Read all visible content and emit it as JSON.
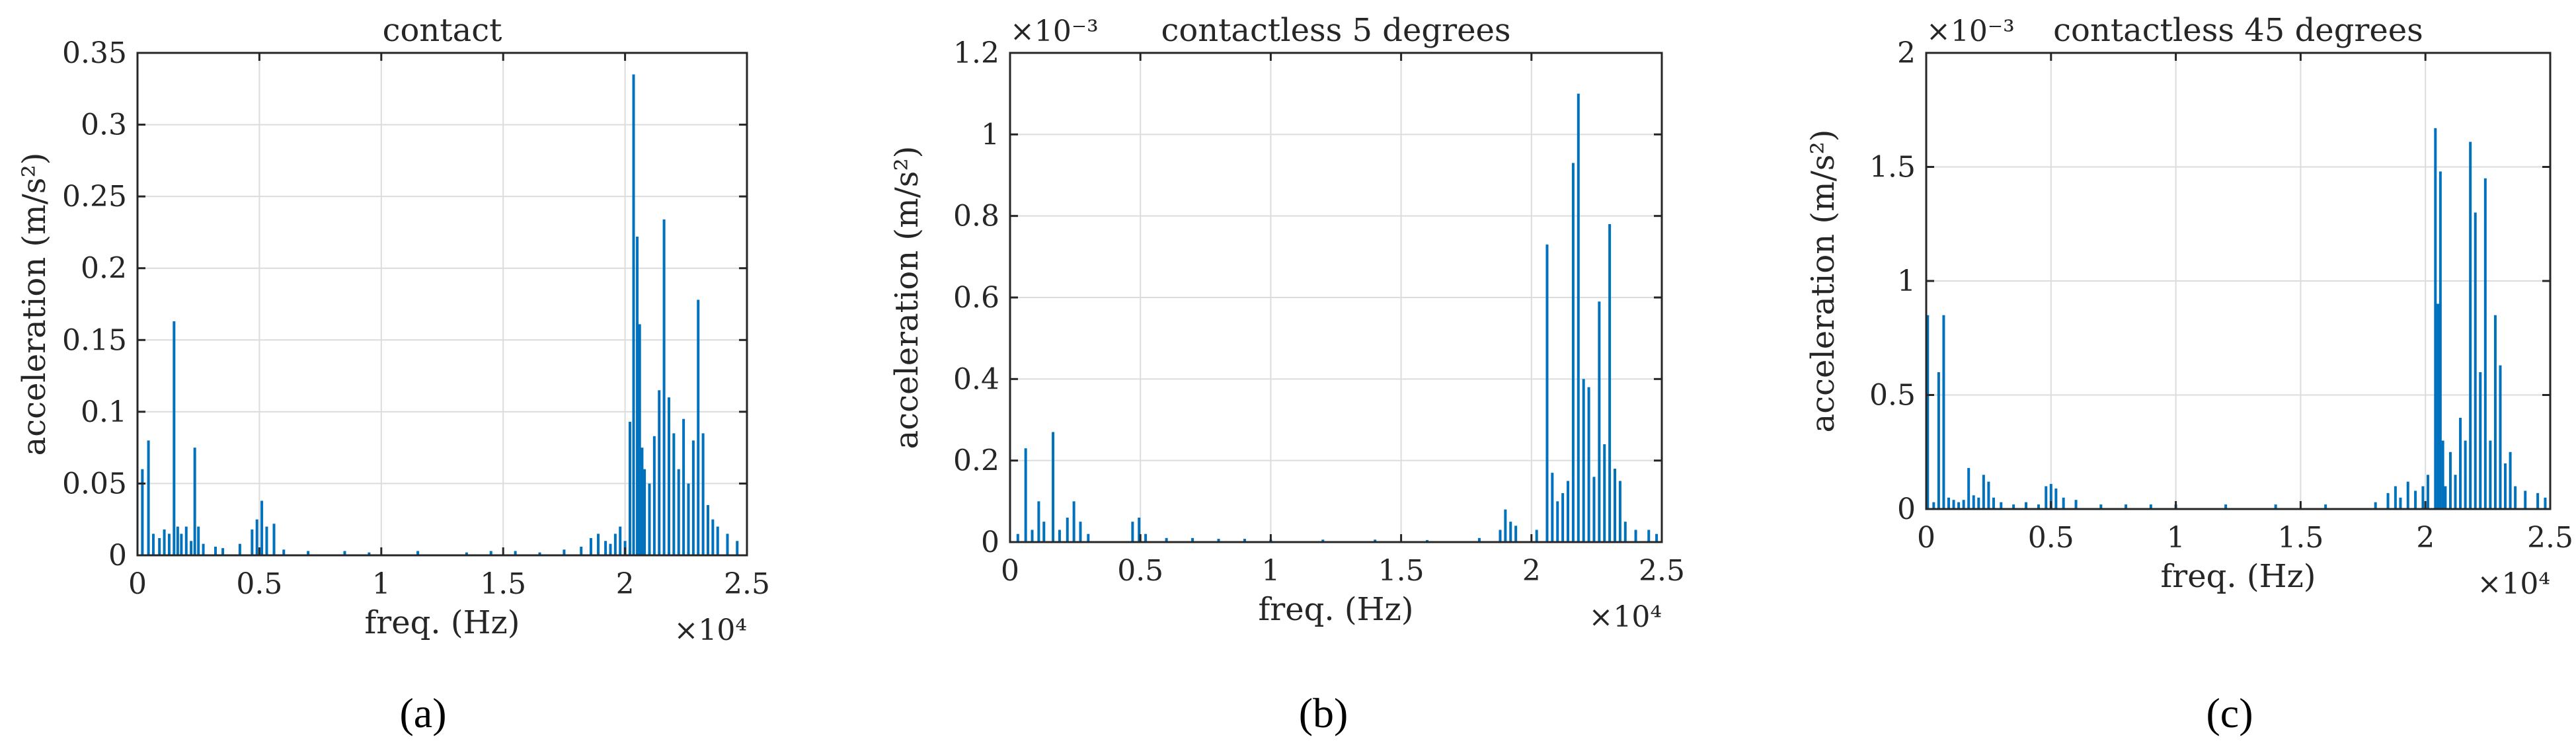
{
  "chart_data": [
    {
      "type": "bar",
      "panel_label": "(a)",
      "title": "contact",
      "xlabel": "freq. (Hz)",
      "ylabel": "acceleration (m/s²)",
      "x_multiplier": "×10⁴",
      "y_multiplier": "",
      "xlim": [
        0,
        25000
      ],
      "ylim": [
        0,
        0.35
      ],
      "xticks": [
        0,
        5000,
        10000,
        15000,
        20000,
        25000
      ],
      "xtick_labels": [
        "0",
        "0.5",
        "1",
        "1.5",
        "2",
        "2.5"
      ],
      "yticks": [
        0,
        0.05,
        0.1,
        0.15,
        0.2,
        0.25,
        0.3,
        0.35
      ],
      "ytick_labels": [
        "0",
        "0.05",
        "0.1",
        "0.15",
        "0.2",
        "0.25",
        "0.3",
        "0.35"
      ],
      "grid": true,
      "color": "#0072BD",
      "x": [
        200,
        450,
        650,
        900,
        1100,
        1300,
        1500,
        1650,
        1800,
        2000,
        2200,
        2350,
        2500,
        2700,
        3200,
        3500,
        4200,
        4700,
        4900,
        5100,
        5300,
        5600,
        6000,
        7000,
        8500,
        9500,
        11500,
        13500,
        14500,
        15500,
        16500,
        17500,
        18200,
        18600,
        18900,
        19200,
        19400,
        19600,
        19800,
        20000,
        20200,
        20350,
        20500,
        20600,
        20700,
        20800,
        21000,
        21200,
        21400,
        21600,
        21800,
        22000,
        22200,
        22400,
        22600,
        22800,
        23000,
        23200,
        23400,
        23600,
        23800,
        24200,
        24600
      ],
      "y": [
        0.06,
        0.08,
        0.015,
        0.012,
        0.018,
        0.015,
        0.163,
        0.02,
        0.015,
        0.02,
        0.01,
        0.075,
        0.02,
        0.008,
        0.006,
        0.005,
        0.008,
        0.018,
        0.025,
        0.038,
        0.02,
        0.022,
        0.004,
        0.003,
        0.003,
        0.002,
        0.003,
        0.002,
        0.003,
        0.003,
        0.002,
        0.004,
        0.006,
        0.012,
        0.015,
        0.01,
        0.008,
        0.015,
        0.02,
        0.01,
        0.093,
        0.335,
        0.222,
        0.161,
        0.075,
        0.06,
        0.05,
        0.083,
        0.115,
        0.234,
        0.11,
        0.085,
        0.06,
        0.095,
        0.05,
        0.08,
        0.178,
        0.085,
        0.035,
        0.025,
        0.02,
        0.015,
        0.01
      ]
    },
    {
      "type": "bar",
      "panel_label": "(b)",
      "title": "contactless 5 degrees",
      "xlabel": "freq. (Hz)",
      "ylabel": "acceleration (m/s²)",
      "x_multiplier": "×10⁴",
      "y_multiplier": "×10⁻³",
      "xlim": [
        0,
        25000
      ],
      "ylim": [
        0,
        0.0012
      ],
      "xticks": [
        0,
        5000,
        10000,
        15000,
        20000,
        25000
      ],
      "xtick_labels": [
        "0",
        "0.5",
        "1",
        "1.5",
        "2",
        "2.5"
      ],
      "yticks": [
        0,
        0.0002,
        0.0004,
        0.0006,
        0.0008,
        0.001,
        0.0012
      ],
      "ytick_labels": [
        "0",
        "0.2",
        "0.4",
        "0.6",
        "0.8",
        "1",
        "1.2"
      ],
      "grid": true,
      "color": "#0072BD",
      "x": [
        300,
        600,
        850,
        1100,
        1300,
        1650,
        1900,
        2200,
        2450,
        2700,
        3000,
        4700,
        4950,
        5200,
        6000,
        7000,
        8000,
        9000,
        10000,
        12000,
        14000,
        16000,
        18000,
        18800,
        19000,
        19200,
        19400,
        20200,
        20600,
        20800,
        21000,
        21200,
        21400,
        21600,
        21800,
        22000,
        22200,
        22400,
        22600,
        22800,
        23000,
        23200,
        23400,
        23600,
        24000,
        24500,
        24800
      ],
      "y": [
        2e-05,
        0.00023,
        3e-05,
        0.0001,
        5e-05,
        0.00027,
        3e-05,
        6e-05,
        0.0001,
        5e-05,
        2e-05,
        5e-05,
        6e-05,
        2e-05,
        1e-05,
        1e-05,
        8e-06,
        8e-06,
        6e-06,
        6e-06,
        6e-06,
        5e-06,
        1e-05,
        3e-05,
        8e-05,
        5e-05,
        4e-05,
        3e-05,
        0.00073,
        0.00017,
        0.0001,
        0.00012,
        0.00015,
        0.00093,
        0.0011,
        0.0004,
        0.00038,
        0.00016,
        0.00059,
        0.00024,
        0.00078,
        0.00018,
        0.00015,
        5e-05,
        3e-05,
        3e-05,
        2e-05
      ]
    },
    {
      "type": "bar",
      "panel_label": "(c)",
      "title": "contactless 45 degrees",
      "xlabel": "freq. (Hz)",
      "ylabel": "acceleration (m/s²)",
      "x_multiplier": "×10⁴",
      "y_multiplier": "×10⁻³",
      "xlim": [
        0,
        25000
      ],
      "ylim": [
        0,
        0.002
      ],
      "xticks": [
        0,
        5000,
        10000,
        15000,
        20000,
        25000
      ],
      "xtick_labels": [
        "0",
        "0.5",
        "1",
        "1.5",
        "2",
        "2.5"
      ],
      "yticks": [
        0,
        0.0005,
        0.001,
        0.0015,
        0.002
      ],
      "ytick_labels": [
        "0",
        "0.5",
        "1",
        "1.5",
        "2"
      ],
      "grid": true,
      "color": "#0072BD",
      "x": [
        60,
        300,
        500,
        700,
        900,
        1100,
        1300,
        1500,
        1700,
        1900,
        2100,
        2300,
        2500,
        2700,
        3000,
        3500,
        4000,
        4500,
        4800,
        5000,
        5200,
        5500,
        6000,
        7000,
        8000,
        9000,
        10000,
        12000,
        14000,
        16000,
        18000,
        18500,
        18800,
        19000,
        19300,
        19600,
        19900,
        20100,
        20400,
        20500,
        20600,
        20700,
        20800,
        21000,
        21200,
        21400,
        21600,
        21800,
        22000,
        22200,
        22400,
        22600,
        22800,
        23000,
        23200,
        23400,
        23600,
        24000,
        24500,
        24800
      ],
      "y": [
        0.00085,
        3e-05,
        0.0006,
        0.00085,
        5e-05,
        4e-05,
        3e-05,
        4e-05,
        0.00018,
        6e-05,
        5e-05,
        0.00015,
        0.00012,
        5e-05,
        3e-05,
        2e-05,
        3e-05,
        2e-05,
        0.0001,
        0.00011,
        9e-05,
        5e-05,
        4e-05,
        2e-05,
        2e-05,
        2e-05,
        2e-05,
        2e-05,
        2e-05,
        2e-05,
        3e-05,
        7e-05,
        0.0001,
        5e-05,
        0.00012,
        8e-05,
        0.0001,
        0.00015,
        0.00167,
        0.0009,
        0.00148,
        0.0003,
        0.0001,
        0.00025,
        0.00015,
        0.0004,
        0.0003,
        0.00161,
        0.0013,
        0.0006,
        0.00145,
        0.0003,
        0.00085,
        0.00063,
        0.0002,
        0.00025,
        0.0001,
        8e-05,
        7e-05,
        5e-05
      ]
    }
  ]
}
